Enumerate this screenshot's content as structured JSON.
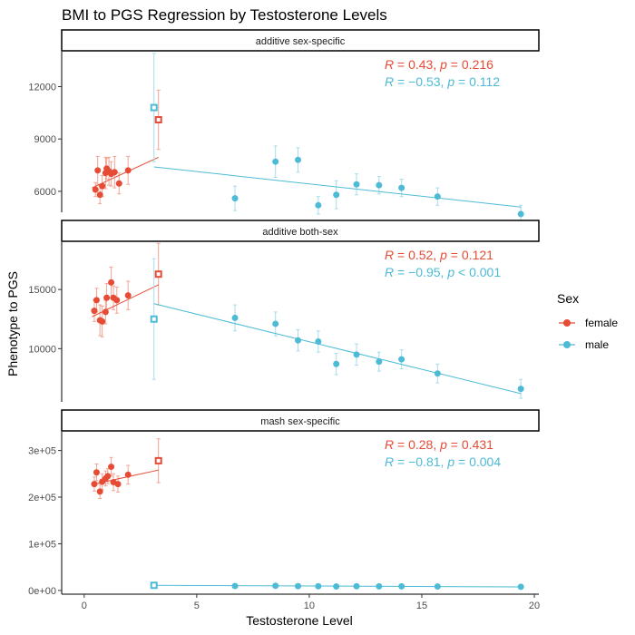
{
  "chart_data": {
    "type": "scatter",
    "title": "BMI to PGS Regression by Testosterone Levels",
    "xlabel": "Testosterone Level",
    "ylabel": "Phenotype to PGS",
    "x_ticks": [
      0,
      5,
      10,
      15,
      20
    ],
    "xlim": [
      -1,
      20.2
    ],
    "legend": {
      "title": "Sex",
      "position": "right",
      "entries": [
        {
          "label": "female",
          "color": "#E64B35"
        },
        {
          "label": "male",
          "color": "#4DBBD5"
        }
      ]
    },
    "panels": [
      {
        "strip": "additive sex-specific",
        "ylim": [
          4800,
          14000
        ],
        "y_ticks": [
          6000,
          9000,
          12000
        ],
        "y_tick_labels": [
          "6000",
          "9000",
          "12000"
        ],
        "stats": [
          {
            "sex": "female",
            "R": "0.43",
            "p": "0.216"
          },
          {
            "sex": "male",
            "R": "−0.53",
            "p": "0.112"
          }
        ],
        "series": [
          {
            "name": "female",
            "points": [
              [
                0.5,
                6100
              ],
              [
                0.6,
                7200
              ],
              [
                0.7,
                5800
              ],
              [
                0.8,
                6300
              ],
              [
                0.95,
                7050
              ],
              [
                1.0,
                7300
              ],
              [
                1.1,
                7150
              ],
              [
                1.2,
                7000
              ],
              [
                1.35,
                7100
              ],
              [
                1.55,
                6450
              ],
              [
                1.95,
                7200
              ]
            ],
            "err": [
              400,
              800,
              500,
              600,
              900,
              600,
              800,
              700,
              900,
              600,
              800
            ],
            "outlier": [
              3.3,
              10100
            ],
            "outlier_err": 1700,
            "fit": [
              [
                0.35,
                6200
              ],
              [
                3.3,
                7950
              ]
            ]
          },
          {
            "name": "male",
            "points": [
              [
                6.7,
                5600
              ],
              [
                8.5,
                7700
              ],
              [
                9.5,
                7800
              ],
              [
                10.4,
                5200
              ],
              [
                11.2,
                5800
              ],
              [
                12.1,
                6400
              ],
              [
                13.1,
                6350
              ],
              [
                14.1,
                6200
              ],
              [
                15.7,
                5700
              ],
              [
                19.4,
                4700
              ]
            ],
            "err": [
              700,
              900,
              700,
              500,
              800,
              600,
              500,
              500,
              500,
              500
            ],
            "outlier": [
              3.1,
              10800
            ],
            "outlier_err": 3100,
            "fit": [
              [
                3.1,
                7400
              ],
              [
                19.4,
                5100
              ]
            ]
          }
        ]
      },
      {
        "strip": "additive both-sex",
        "ylim": [
          5500,
          19000
        ],
        "y_ticks": [
          10000,
          15000
        ],
        "y_tick_labels": [
          "10000",
          "15000"
        ],
        "stats": [
          {
            "sex": "female",
            "R": "0.52",
            "p": "0.121"
          },
          {
            "sex": "male",
            "R": "−0.95",
            "p": "< 0.001"
          }
        ],
        "series": [
          {
            "name": "female",
            "points": [
              [
                0.45,
                13200
              ],
              [
                0.55,
                14100
              ],
              [
                0.7,
                12400
              ],
              [
                0.8,
                12300
              ],
              [
                0.95,
                13100
              ],
              [
                1.0,
                14300
              ],
              [
                1.2,
                15600
              ],
              [
                1.3,
                14300
              ],
              [
                1.45,
                14100
              ],
              [
                1.95,
                14500
              ]
            ],
            "err": [
              900,
              1000,
              1300,
              1300,
              1000,
              1200,
              1300,
              1000,
              1100,
              1200
            ],
            "outlier": [
              3.3,
              16300
            ],
            "outlier_err": 2600,
            "fit": [
              [
                0.35,
                12700
              ],
              [
                3.3,
                15400
              ]
            ]
          },
          {
            "name": "male",
            "points": [
              [
                6.7,
                12600
              ],
              [
                8.5,
                12100
              ],
              [
                9.5,
                10700
              ],
              [
                10.4,
                10600
              ],
              [
                11.2,
                8700
              ],
              [
                12.1,
                9500
              ],
              [
                13.1,
                8900
              ],
              [
                14.1,
                9100
              ],
              [
                15.7,
                7900
              ],
              [
                19.4,
                6600
              ]
            ],
            "err": [
              1100,
              1000,
              900,
              900,
              900,
              900,
              800,
              800,
              800,
              800
            ],
            "outlier": [
              3.1,
              12500
            ],
            "outlier_err": 5100,
            "fit": [
              [
                3.1,
                13800
              ],
              [
                19.4,
                6200
              ]
            ]
          }
        ]
      },
      {
        "strip": "mash sex-specific",
        "ylim": [
          -8000,
          340000
        ],
        "y_ticks": [
          0,
          100000,
          200000,
          300000
        ],
        "y_tick_labels": [
          "0e+00",
          "1e+05",
          "2e+05",
          "3e+05"
        ],
        "stats": [
          {
            "sex": "female",
            "R": "0.28",
            "p": "0.431"
          },
          {
            "sex": "male",
            "R": "−0.81",
            "p": "0.004"
          }
        ],
        "series": [
          {
            "name": "female",
            "points": [
              [
                0.45,
                228000
              ],
              [
                0.55,
                253000
              ],
              [
                0.7,
                212000
              ],
              [
                0.8,
                233000
              ],
              [
                0.95,
                240000
              ],
              [
                1.05,
                245000
              ],
              [
                1.2,
                265000
              ],
              [
                1.3,
                232000
              ],
              [
                1.5,
                228000
              ],
              [
                1.95,
                248000
              ]
            ],
            "err": [
              15000,
              18000,
              15000,
              17000,
              16000,
              16000,
              20000,
              18000,
              17000,
              20000
            ],
            "outlier": [
              3.3,
              278000
            ],
            "outlier_err": 47000,
            "fit": [
              [
                0.35,
                227000
              ],
              [
                3.3,
                258000
              ]
            ]
          },
          {
            "name": "male",
            "points": [
              [
                6.7,
                9500
              ],
              [
                8.5,
                10000
              ],
              [
                9.5,
                9300
              ],
              [
                10.4,
                9000
              ],
              [
                11.2,
                8500
              ],
              [
                12.1,
                9000
              ],
              [
                13.1,
                8800
              ],
              [
                14.1,
                8800
              ],
              [
                15.7,
                8500
              ],
              [
                19.4,
                7800
              ]
            ],
            "err": [
              2500,
              2500,
              2500,
              2500,
              2500,
              2500,
              2500,
              2500,
              2500,
              2500
            ],
            "outlier": [
              3.1,
              11000
            ],
            "outlier_err": 4000,
            "fit": [
              [
                3.1,
                11000
              ],
              [
                19.4,
                7500
              ]
            ]
          }
        ]
      }
    ]
  }
}
